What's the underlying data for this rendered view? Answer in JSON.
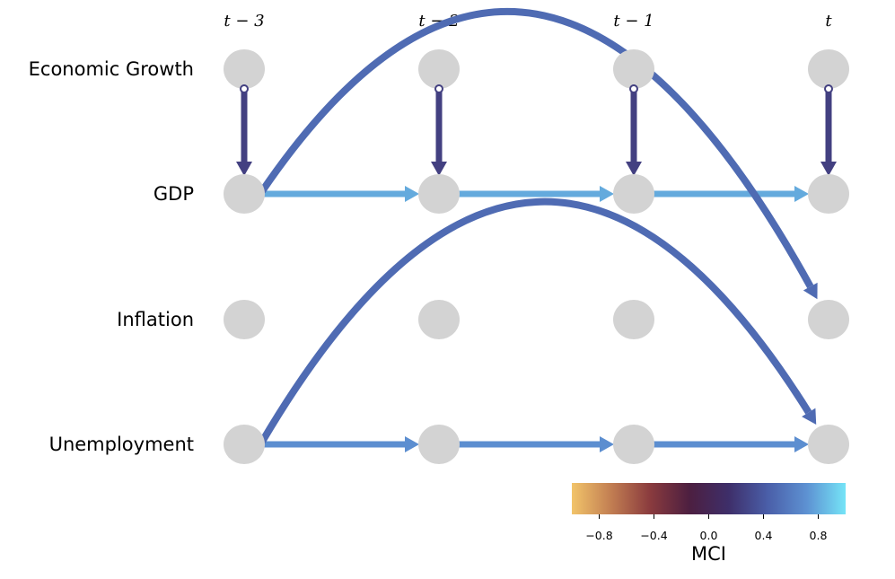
{
  "variables": [
    "Economic Growth",
    "GDP",
    "Inflation",
    "Unemployment"
  ],
  "time_labels": [
    "t − 3",
    "t − 2",
    "t − 1",
    "t"
  ],
  "node_color": "#d3d3d3",
  "links": [
    {
      "from": [
        0,
        0
      ],
      "to": [
        1,
        0
      ],
      "type": "contemporaneous",
      "mci": 0.25
    },
    {
      "from": [
        0,
        1
      ],
      "to": [
        1,
        1
      ],
      "type": "contemporaneous",
      "mci": 0.25
    },
    {
      "from": [
        0,
        2
      ],
      "to": [
        1,
        2
      ],
      "type": "contemporaneous",
      "mci": 0.25
    },
    {
      "from": [
        0,
        3
      ],
      "to": [
        1,
        3
      ],
      "type": "contemporaneous",
      "mci": 0.25
    },
    {
      "from": [
        1,
        0
      ],
      "to": [
        1,
        1
      ],
      "type": "lagged",
      "mci": 0.8
    },
    {
      "from": [
        1,
        1
      ],
      "to": [
        1,
        2
      ],
      "type": "lagged",
      "mci": 0.8
    },
    {
      "from": [
        1,
        2
      ],
      "to": [
        1,
        3
      ],
      "type": "lagged",
      "mci": 0.8
    },
    {
      "from": [
        1,
        0
      ],
      "to": [
        2,
        3
      ],
      "type": "lagged",
      "mci": 0.5,
      "curved": true
    },
    {
      "from": [
        3,
        0
      ],
      "to": [
        3,
        1
      ],
      "type": "lagged",
      "mci": 0.7
    },
    {
      "from": [
        3,
        1
      ],
      "to": [
        3,
        2
      ],
      "type": "lagged",
      "mci": 0.7
    },
    {
      "from": [
        3,
        2
      ],
      "to": [
        3,
        3
      ],
      "type": "lagged",
      "mci": 0.7
    },
    {
      "from": [
        3,
        0
      ],
      "to": [
        3,
        3
      ],
      "type": "lagged",
      "mci": 0.5,
      "curved": true
    }
  ],
  "colorbar": {
    "label": "MCI",
    "range": [
      -1,
      1
    ],
    "ticks": [
      -0.8,
      -0.4,
      0.0,
      0.4,
      0.8
    ],
    "tick_labels": [
      "−0.8",
      "−0.4",
      "0.0",
      "0.4",
      "0.8"
    ],
    "stops": [
      "#f2c46a",
      "#c27e52",
      "#8a3b3e",
      "#4d1f40",
      "#3e2e69",
      "#4a5ea8",
      "#5d91d2",
      "#75e4f7"
    ]
  }
}
